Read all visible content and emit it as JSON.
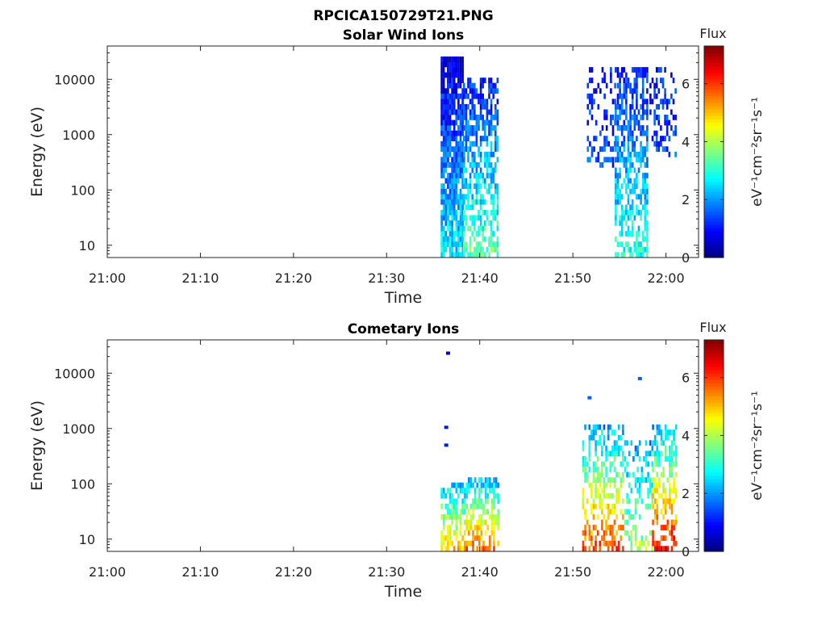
{
  "figure_title": "RPCICA150729T21.PNG",
  "colorbar": {
    "title": "Flux",
    "label": "eV⁻¹cm⁻²sr⁻¹s⁻¹",
    "ticks": [
      "0",
      "2",
      "4",
      "6"
    ],
    "range": [
      0,
      7.3
    ],
    "colormap": "jet"
  },
  "chart_data": [
    {
      "type": "heatmap",
      "title": "Solar Wind Ions",
      "xlabel": "Time",
      "ylabel": "Energy (eV)",
      "xticks": [
        "21:00",
        "21:10",
        "21:20",
        "21:30",
        "21:40",
        "21:50",
        "22:00"
      ],
      "xlim_minutes": [
        0,
        63.5
      ],
      "yticks": [
        "10",
        "100",
        "1000",
        "10000"
      ],
      "ylim": [
        6,
        40000
      ],
      "yscale": "log",
      "blocks": [
        {
          "t0": 35.8,
          "t1": 38.2,
          "emin": 6,
          "emax": 28000,
          "level_low": 2.6,
          "level_high": 0.6,
          "density": 0.85
        },
        {
          "t0": 38.2,
          "t1": 42.0,
          "emin": 6,
          "emax": 10000,
          "level_low": 3.4,
          "level_high": 1.1,
          "density": 0.6
        },
        {
          "t0": 51.5,
          "t1": 54.5,
          "emin": 250,
          "emax": 15000,
          "level_low": 1.4,
          "level_high": 1.0,
          "density": 0.3
        },
        {
          "t0": 54.5,
          "t1": 58.0,
          "emin": 6,
          "emax": 18000,
          "level_low": 3.0,
          "level_high": 1.0,
          "density": 0.6
        },
        {
          "t0": 58.0,
          "t1": 61.0,
          "emin": 400,
          "emax": 15000,
          "level_low": 1.4,
          "level_high": 1.0,
          "density": 0.3
        }
      ]
    },
    {
      "type": "heatmap",
      "title": "Cometary Ions",
      "xlabel": "Time",
      "ylabel": "Energy (eV)",
      "xticks": [
        "21:00",
        "21:10",
        "21:20",
        "21:30",
        "21:40",
        "21:50",
        "22:00"
      ],
      "xlim_minutes": [
        0,
        63.5
      ],
      "yticks": [
        "10",
        "100",
        "1000",
        "10000"
      ],
      "ylim": [
        6,
        40000
      ],
      "yscale": "log",
      "blocks": [
        {
          "t0": 35.8,
          "t1": 38.5,
          "emin": 6,
          "emax": 110,
          "level_low": 5.0,
          "level_high": 2.2,
          "density": 0.6
        },
        {
          "t0": 38.5,
          "t1": 42.0,
          "emin": 6,
          "emax": 120,
          "level_low": 5.8,
          "level_high": 2.2,
          "density": 0.55
        },
        {
          "t0": 51.0,
          "t1": 55.5,
          "emin": 6,
          "emax": 1200,
          "level_low": 6.0,
          "level_high": 2.0,
          "density": 0.45
        },
        {
          "t0": 55.5,
          "t1": 58.5,
          "emin": 6,
          "emax": 600,
          "level_low": 4.0,
          "level_high": 2.0,
          "density": 0.35
        },
        {
          "t0": 58.5,
          "t1": 61.0,
          "emin": 6,
          "emax": 1300,
          "level_low": 6.5,
          "level_high": 2.0,
          "density": 0.5
        }
      ],
      "isolated_points": [
        {
          "t": 36.6,
          "e": 23000,
          "v": 0.6
        },
        {
          "t": 36.4,
          "e": 1050,
          "v": 1.1
        },
        {
          "t": 36.4,
          "e": 500,
          "v": 1.1
        },
        {
          "t": 51.8,
          "e": 3600,
          "v": 1.6
        },
        {
          "t": 57.2,
          "e": 8000,
          "v": 1.6
        }
      ]
    }
  ]
}
